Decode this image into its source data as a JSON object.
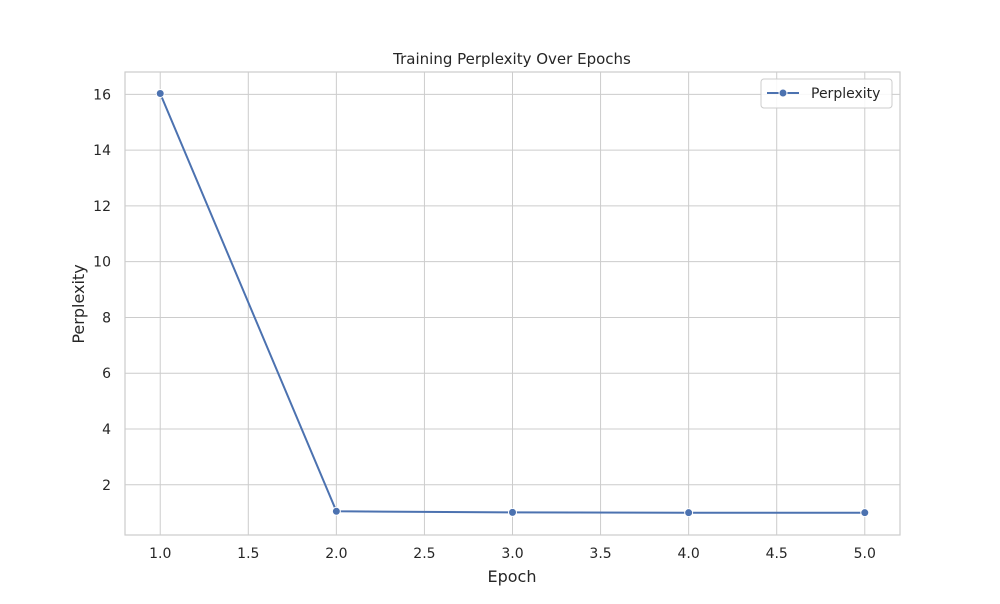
{
  "chart_data": {
    "type": "line",
    "title": "Training Perplexity Over Epochs",
    "xlabel": "Epoch",
    "ylabel": "Perplexity",
    "x": [
      1,
      2,
      3,
      4,
      5
    ],
    "series": [
      {
        "name": "Perplexity",
        "values": [
          16.03,
          1.05,
          1.01,
          1.0,
          1.0
        ],
        "color": "#4c72b0"
      }
    ],
    "xlim": [
      0.8,
      5.2
    ],
    "ylim": [
      0.2,
      16.8
    ],
    "xticks": [
      1.0,
      1.5,
      2.0,
      2.5,
      3.0,
      3.5,
      4.0,
      4.5,
      5.0
    ],
    "yticks": [
      2,
      4,
      6,
      8,
      10,
      12,
      14,
      16
    ],
    "xtick_labels": [
      "1.0",
      "1.5",
      "2.0",
      "2.5",
      "3.0",
      "3.5",
      "4.0",
      "4.5",
      "5.0"
    ],
    "ytick_labels": [
      "2",
      "4",
      "6",
      "8",
      "10",
      "12",
      "14",
      "16"
    ],
    "grid": true,
    "legend_position": "top-right",
    "style": {
      "grid_color": "#cccccc",
      "spine_color": "#cccccc",
      "background": "#ffffff"
    }
  }
}
